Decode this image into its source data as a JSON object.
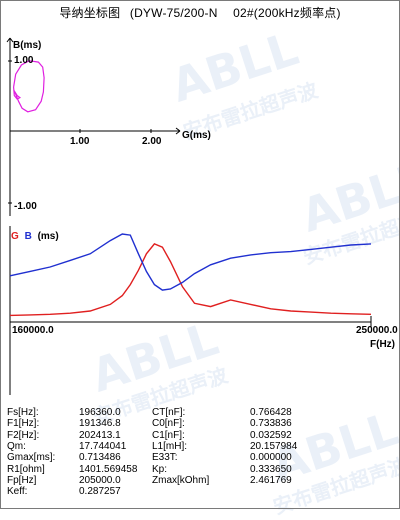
{
  "window": {
    "title_parts": [
      "导纳坐标图",
      "(DYW-75/200-N",
      "02#(200kHz频率点)"
    ]
  },
  "watermark": {
    "brand": "ABLL",
    "cn": "安布雷拉超声波"
  },
  "admittance_plot": {
    "y_axis_label": "B(ms)",
    "x_axis_label": "G(ms)",
    "y_ticks": [
      "1.00",
      "-1.00"
    ],
    "x_ticks": [
      "1.00",
      "2.00"
    ],
    "loop_color": "#e020e0",
    "loop_points_gb": [
      [
        0.05,
        0.62
      ],
      [
        0.08,
        0.8
      ],
      [
        0.16,
        0.93
      ],
      [
        0.27,
        0.99
      ],
      [
        0.4,
        0.97
      ],
      [
        0.46,
        0.9
      ],
      [
        0.48,
        0.75
      ],
      [
        0.47,
        0.55
      ],
      [
        0.44,
        0.42
      ],
      [
        0.36,
        0.3
      ],
      [
        0.25,
        0.27
      ],
      [
        0.17,
        0.32
      ],
      [
        0.12,
        0.42
      ],
      [
        0.08,
        0.52
      ],
      [
        0.05,
        0.58
      ],
      [
        0.1,
        0.5
      ],
      [
        0.14,
        0.47
      ],
      [
        0.1,
        0.45
      ],
      [
        0.06,
        0.5
      ],
      [
        0.05,
        0.62
      ]
    ]
  },
  "frequency_plot": {
    "legend": [
      "G",
      "B",
      "(ms)"
    ],
    "x_start_label": "160000.0",
    "x_end_label": "250000.0",
    "x_axis_label": "F(Hz)",
    "g_color": "#e02020",
    "b_color": "#2030d0"
  },
  "chart_data": [
    {
      "type": "scatter",
      "title": "",
      "xlabel": "G(ms)",
      "ylabel": "B(ms)",
      "x_ticks": [
        1.0,
        2.0
      ],
      "y_ticks": [
        1.0,
        -1.0
      ],
      "series": [
        {
          "x": [
            0.05,
            0.08,
            0.16,
            0.27,
            0.4,
            0.46,
            0.48,
            0.47,
            0.44,
            0.36,
            0.25,
            0.17,
            0.12,
            0.08,
            0.05
          ],
          "y": [
            0.62,
            0.8,
            0.93,
            0.99,
            0.97,
            0.9,
            0.75,
            0.55,
            0.42,
            0.3,
            0.27,
            0.32,
            0.42,
            0.52,
            0.58
          ]
        }
      ]
    },
    {
      "type": "line",
      "title": "",
      "xlabel": "F(Hz)",
      "ylabel": "(ms)",
      "xlim": [
        160000,
        250000
      ],
      "x": [
        160000,
        165000,
        170000,
        175000,
        180000,
        185000,
        188000,
        190000,
        192000,
        194000,
        196000,
        198000,
        200000,
        203000,
        206000,
        210000,
        215000,
        220000,
        225000,
        230000,
        235000,
        240000,
        245000,
        250000
      ],
      "series": [
        {
          "name": "G",
          "values": [
            0.06,
            0.065,
            0.07,
            0.08,
            0.1,
            0.16,
            0.24,
            0.34,
            0.47,
            0.62,
            0.71,
            0.68,
            0.55,
            0.32,
            0.17,
            0.14,
            0.2,
            0.16,
            0.12,
            0.1,
            0.09,
            0.08,
            0.075,
            0.07
          ]
        },
        {
          "name": "B",
          "values": [
            0.42,
            0.46,
            0.5,
            0.56,
            0.62,
            0.74,
            0.8,
            0.79,
            0.62,
            0.46,
            0.34,
            0.29,
            0.3,
            0.36,
            0.44,
            0.52,
            0.58,
            0.61,
            0.63,
            0.64,
            0.66,
            0.68,
            0.7,
            0.71
          ]
        }
      ]
    }
  ],
  "parameters": {
    "left": [
      {
        "label": "Fs[Hz]:",
        "value": "196360.0"
      },
      {
        "label": "F1[Hz]:",
        "value": "191346.8"
      },
      {
        "label": "F2[Hz]:",
        "value": "202413.1"
      },
      {
        "label": "Qm:",
        "value": "17.744041"
      },
      {
        "label": "Gmax[ms]:",
        "value": "0.713486"
      },
      {
        "label": "R1[ohm]",
        "value": "1401.569458"
      },
      {
        "label": "Fp[Hz]",
        "value": "205000.0"
      },
      {
        "label": "Keff:",
        "value": "0.287257"
      }
    ],
    "right": [
      {
        "label": "CT[nF]:",
        "value": "0.766428"
      },
      {
        "label": "C0[nF]:",
        "value": "0.733836"
      },
      {
        "label": "C1[nF]:",
        "value": "0.032592"
      },
      {
        "label": "L1[mH]:",
        "value": "20.157984"
      },
      {
        "label": "E33T:",
        "value": "0.000000"
      },
      {
        "label": "Kp:",
        "value": "0.333650"
      },
      {
        "label": "Zmax[kOhm]",
        "value": "2.461769"
      }
    ]
  }
}
